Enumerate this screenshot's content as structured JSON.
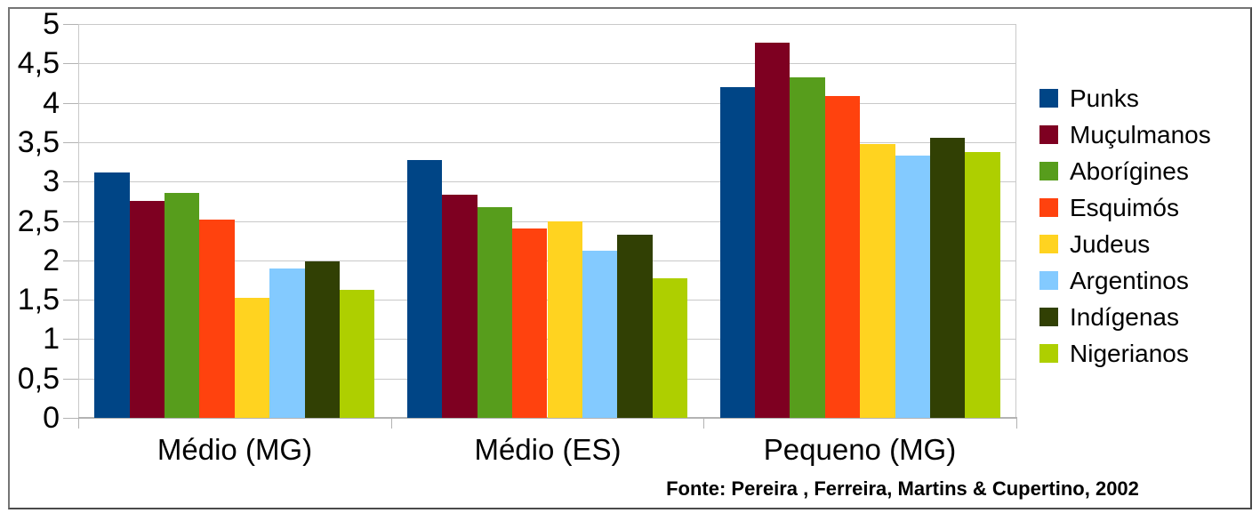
{
  "chart_data": {
    "type": "bar",
    "title": "",
    "categories": [
      "Médio (MG)",
      "Médio (ES)",
      "Pequeno (MG)"
    ],
    "series": [
      {
        "name": "Punks",
        "color": "#004586",
        "values": [
          3.11,
          3.27,
          4.2
        ]
      },
      {
        "name": "Muçulmanos",
        "color": "#7e0021",
        "values": [
          2.75,
          2.83,
          4.76
        ]
      },
      {
        "name": "Aborígines",
        "color": "#579d1c",
        "values": [
          2.85,
          2.67,
          4.32
        ]
      },
      {
        "name": "Esquimós",
        "color": "#ff420e",
        "values": [
          2.52,
          2.4,
          4.09
        ]
      },
      {
        "name": "Judeus",
        "color": "#ffd320",
        "values": [
          1.52,
          2.5,
          3.48
        ]
      },
      {
        "name": "Argentinos",
        "color": "#83caff",
        "values": [
          1.9,
          2.12,
          3.33
        ]
      },
      {
        "name": "Indígenas",
        "color": "#314004",
        "values": [
          1.99,
          2.33,
          3.56
        ]
      },
      {
        "name": "Nigerianos",
        "color": "#aecf00",
        "values": [
          1.62,
          1.77,
          3.38
        ]
      }
    ],
    "y_axis": {
      "min": 0,
      "max": 5,
      "step": 0.5,
      "tick_labels": [
        "0",
        "0,5",
        "1",
        "1,5",
        "2",
        "2,5",
        "3",
        "3,5",
        "4",
        "4,5",
        "5"
      ]
    },
    "grid": true,
    "legend_position": "right",
    "grid_color": "#c9c9c9",
    "axis_color": "#b3b3b3"
  },
  "footer": {
    "source_note": "Fonte: Pereira , Ferreira, Martins & Cupertino, 2002"
  }
}
